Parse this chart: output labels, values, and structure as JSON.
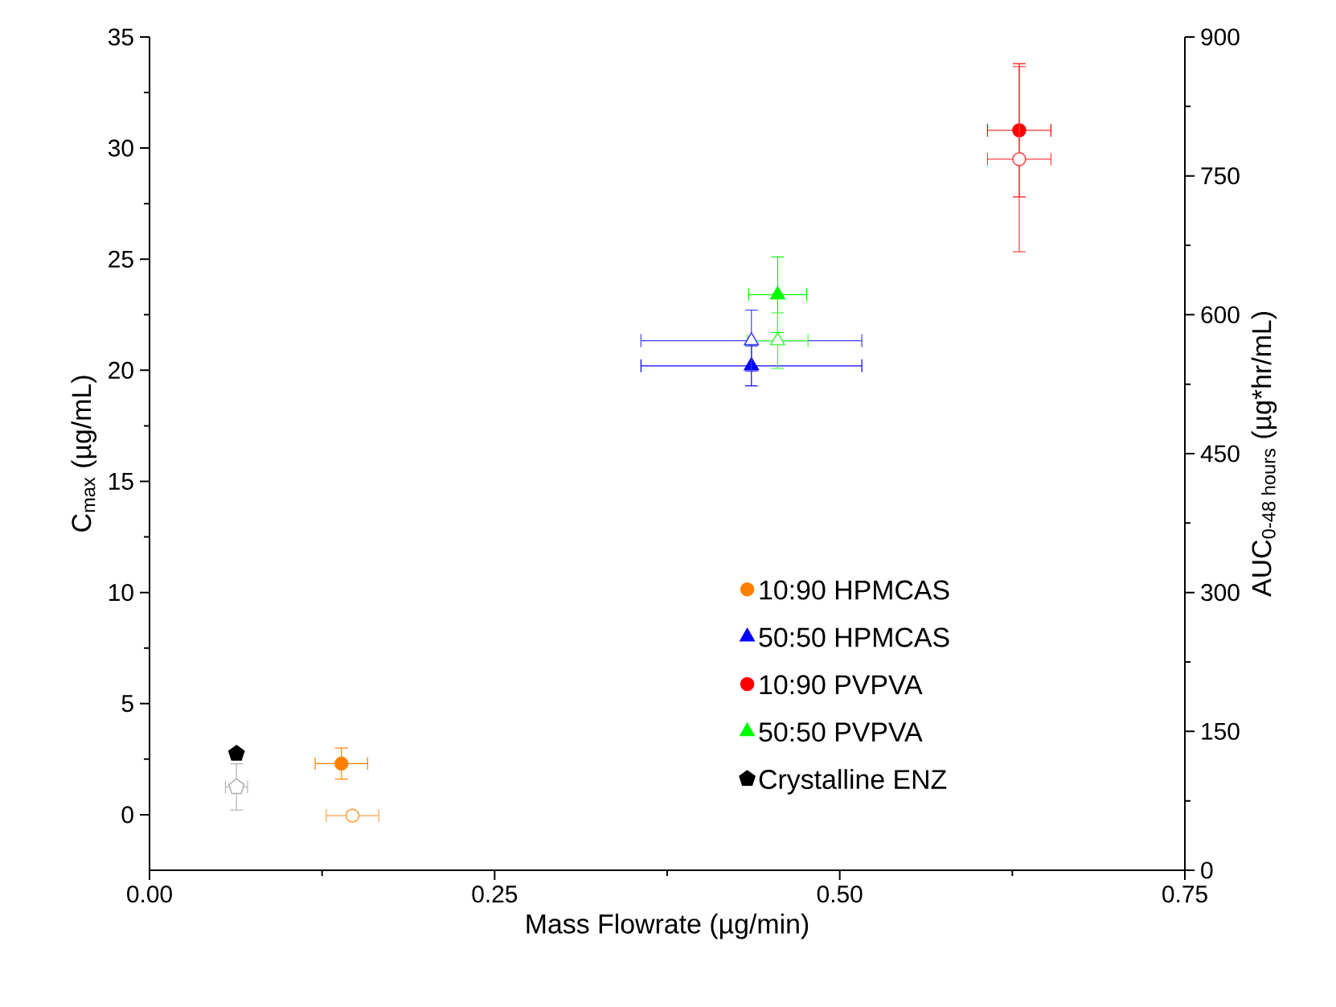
{
  "chart_data": {
    "type": "scatter",
    "xlabel": "Mass Flowrate (µg/min)",
    "ylabel": "C$_{max}$ (µg/mL)",
    "y2label": "AUC$_{0-48 hours}$ (µg*hr/mL)",
    "xlim": [
      0,
      0.75
    ],
    "xticks": [
      {
        "value": 0,
        "label": "0.00"
      },
      {
        "value": 0.25,
        "label": "0.25"
      },
      {
        "value": 0.5,
        "label": "0.50"
      },
      {
        "value": 0.75,
        "label": "0.75"
      }
    ],
    "ylim": [
      -2.5,
      35
    ],
    "yticks": [
      0,
      5,
      10,
      15,
      20,
      25,
      30,
      35
    ],
    "y2lim": [
      0,
      900
    ],
    "y2ticks": [
      0,
      150,
      300,
      450,
      600,
      750,
      900
    ],
    "legend": "bottom right",
    "grid": false,
    "series": [
      {
        "name": "10:90 HPMCAS",
        "color": "#ff8000",
        "marker": "circle",
        "axis": "y",
        "x": [
          0.139
        ],
        "values": [
          2.3
        ],
        "errors": [
          0.7
        ],
        "xerrors": [
          0.019
        ]
      },
      {
        "name": "50:50 HPMCAS",
        "color": "#0000ff",
        "marker": "triangle",
        "axis": "y",
        "x": [
          0.436
        ],
        "values": [
          20.2
        ],
        "errors": [
          0.9
        ],
        "xerrors": [
          0.08
        ]
      },
      {
        "name": "10:90 PVPVA",
        "color": "#ff0000",
        "marker": "circle",
        "axis": "y",
        "x": [
          0.63
        ],
        "values": [
          30.8
        ],
        "errors": [
          3.0
        ],
        "xerrors": [
          0.023
        ]
      },
      {
        "name": "50:50 PVPVA",
        "color": "#00ff00",
        "marker": "triangle",
        "axis": "y",
        "x": [
          0.455
        ],
        "values": [
          23.4
        ],
        "errors": [
          1.7
        ],
        "xerrors": [
          0.021
        ]
      },
      {
        "name": "Crystalline ENZ",
        "color": "#000000",
        "axis": "y",
        "x": [
          0.063
        ],
        "values": [
          2.75
        ],
        "errors": [
          null
        ],
        "xerrors": [
          null
        ]
      },
      {
        "color": "#ffa040",
        "marker": "circle",
        "axis": "y2",
        "x": [
          0.147
        ],
        "values": [
          59
        ],
        "errors": [
          null
        ],
        "xerrors": [
          0.019
        ]
      },
      {
        "color": "#4040ff",
        "marker": "triangle",
        "axis": "y2",
        "x": [
          0.436
        ],
        "values": [
          572
        ],
        "errors": [
          33
        ],
        "xerrors": [
          0.08
        ]
      },
      {
        "color": "#ff4040",
        "marker": "circle",
        "axis": "y2",
        "x": [
          0.63
        ],
        "values": [
          768
        ],
        "errors": [
          100
        ],
        "xerrors": [
          0.023
        ]
      },
      {
        "color": "#40ff40",
        "marker": "triangle",
        "axis": "y2",
        "x": [
          0.455
        ],
        "values": [
          572
        ],
        "errors": [
          30
        ],
        "xerrors": [
          0.022
        ]
      },
      {
        "color": "#b0b0b0",
        "axis": "y2",
        "x": [
          0.063
        ],
        "values": [
          90
        ],
        "errors": [
          25
        ],
        "xerrors": [
          0.008
        ]
      }
    ]
  }
}
